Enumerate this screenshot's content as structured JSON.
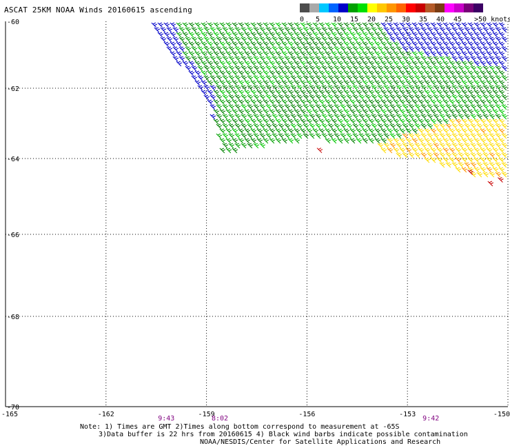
{
  "title": "ASCAT 25KM NOAA Winds 20160615 ascending",
  "colorbar": {
    "swatches": [
      "#4d4d4d",
      "#a9a9a9",
      "#00c8ff",
      "#0064ff",
      "#0000c8",
      "#00a000",
      "#00e000",
      "#ffff00",
      "#ffc800",
      "#ff9600",
      "#ff6400",
      "#ff0000",
      "#c80000",
      "#b45a28",
      "#7a3c14",
      "#ff00ff",
      "#c800c8",
      "#780078",
      "#3c0064"
    ],
    "labels": [
      "0",
      "5",
      "10",
      "15",
      "20",
      "25",
      "30",
      "35",
      "40",
      "45",
      ">50 knots"
    ]
  },
  "notes": {
    "line1": "Note: 1) Times are GMT 2)Times along bottom correspond to measurement at -65S",
    "line2": "3)Data buffer is 22 hrs from 20160615 4) Black wind barbs indicate possible contamination",
    "line3": "NOAA/NESDIS/Center for Satellite Applications and Research"
  },
  "chart_data": {
    "type": "scatter",
    "title": "ASCAT 25KM NOAA Winds 20160615 ascending",
    "x_ticks": [
      "-165",
      "-162",
      "-159",
      "-156",
      "-153",
      "-150"
    ],
    "y_ticks": [
      "-60",
      "-62",
      "-64",
      "-66",
      "-68",
      "-70"
    ],
    "xlim": [
      -165,
      -150
    ],
    "ylim": [
      -70,
      -60
    ],
    "grid": true,
    "times": [
      {
        "label": "9:43",
        "lon": -160.2
      },
      {
        "label": "8:02",
        "lon": -158.6
      },
      {
        "label": "9:42",
        "lon": -152.3
      }
    ],
    "regions": [
      {
        "name": "strip-blue",
        "color": "#0000c8",
        "polygon": [
          [
            -160.8,
            -60.0
          ],
          [
            -160.0,
            -60.0
          ],
          [
            -158.8,
            -61.0
          ],
          [
            -158.6,
            -62.6
          ],
          [
            -158.8,
            -63.0
          ],
          [
            -159.0,
            -62.5
          ],
          [
            -159.9,
            -61.2
          ]
        ]
      },
      {
        "name": "main-green",
        "color": "#00a000",
        "polygon": [
          [
            -160.0,
            -60.0
          ],
          [
            -150.0,
            -60.0
          ],
          [
            -150.0,
            -63.0
          ],
          [
            -151.5,
            -63.3
          ],
          [
            -153.0,
            -63.6
          ],
          [
            -154.5,
            -63.5
          ],
          [
            -156.0,
            -63.4
          ],
          [
            -157.5,
            -63.6
          ],
          [
            -158.6,
            -63.8
          ],
          [
            -158.8,
            -63.0
          ],
          [
            -158.8,
            -62.0
          ],
          [
            -159.7,
            -61.0
          ]
        ]
      },
      {
        "name": "yellow-patch",
        "color": "#ffdc00",
        "polygon": [
          [
            -154.0,
            -63.5
          ],
          [
            -151.5,
            -62.8
          ],
          [
            -150.0,
            -62.9
          ],
          [
            -150.0,
            -64.4
          ],
          [
            -151.0,
            -64.4
          ],
          [
            -152.5,
            -64.0
          ],
          [
            -153.7,
            -63.8
          ]
        ]
      },
      {
        "name": "blue-patch-ne",
        "color": "#0000c8",
        "polygon": [
          [
            -154.0,
            -60.0
          ],
          [
            -150.0,
            -60.0
          ],
          [
            -150.0,
            -61.4
          ],
          [
            -152.0,
            -61.0
          ],
          [
            -153.2,
            -60.8
          ]
        ]
      }
    ],
    "barb_colors": [
      "#00a000",
      "#008000",
      "#00c800",
      "#0000c8",
      "#ffdc00",
      "#ff9600",
      "#c80000",
      "#000000"
    ]
  }
}
